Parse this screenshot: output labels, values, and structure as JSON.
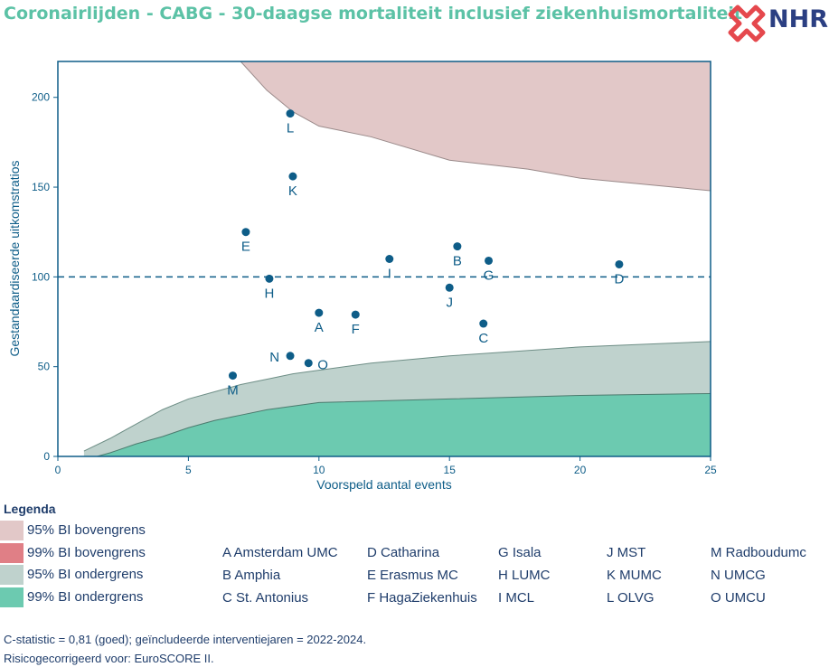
{
  "title": "Coronairlijden - CABG - 30-daagse mortaliteit inclusief ziekenhuismortaliteit",
  "logo": {
    "text": "NHR",
    "icon": "nhr-logo-icon",
    "colors": {
      "mark": "#e5484d",
      "text": "#2b3f82"
    }
  },
  "chart_data": {
    "type": "scatter",
    "title": "",
    "xlabel": "Voorspeld aantal events",
    "ylabel": "Gestandaardiseerde uitkomstratios",
    "xlim": [
      0,
      25
    ],
    "ylim": [
      0,
      220
    ],
    "xticks": [
      0,
      5,
      10,
      15,
      20,
      25
    ],
    "yticks": [
      0,
      50,
      100,
      150,
      200
    ],
    "reference_line": {
      "y": 100,
      "style": "dashed"
    },
    "points": [
      {
        "label": "A",
        "x": 10.0,
        "y": 80
      },
      {
        "label": "B",
        "x": 15.3,
        "y": 117
      },
      {
        "label": "C",
        "x": 16.3,
        "y": 74
      },
      {
        "label": "D",
        "x": 21.5,
        "y": 107
      },
      {
        "label": "E",
        "x": 7.2,
        "y": 125
      },
      {
        "label": "F",
        "x": 11.4,
        "y": 79
      },
      {
        "label": "G",
        "x": 16.5,
        "y": 109
      },
      {
        "label": "H",
        "x": 8.1,
        "y": 99
      },
      {
        "label": "I",
        "x": 12.7,
        "y": 110
      },
      {
        "label": "J",
        "x": 15.0,
        "y": 94
      },
      {
        "label": "K",
        "x": 9.0,
        "y": 156
      },
      {
        "label": "L",
        "x": 8.9,
        "y": 191
      },
      {
        "label": "M",
        "x": 6.7,
        "y": 45
      },
      {
        "label": "N",
        "x": 8.9,
        "y": 56
      },
      {
        "label": "O",
        "x": 9.6,
        "y": 52
      }
    ],
    "bands": {
      "upper95": {
        "x": [
          7,
          8,
          9,
          10,
          12,
          15,
          18,
          20,
          25
        ],
        "y": [
          220,
          204,
          192,
          184,
          178,
          165,
          160,
          155,
          148
        ]
      },
      "lower95": {
        "x": [
          1,
          2,
          3,
          4,
          5,
          6,
          7,
          8,
          9,
          10,
          12,
          15,
          20,
          25
        ],
        "y": [
          3,
          10,
          18,
          26,
          32,
          36,
          40,
          43,
          46,
          48,
          52,
          56,
          61,
          64
        ]
      },
      "lower99": {
        "x": [
          1.5,
          2,
          3,
          4,
          5,
          6,
          7,
          8,
          9,
          10,
          15,
          20,
          25
        ],
        "y": [
          0,
          2,
          7,
          11,
          16,
          20,
          23,
          26,
          28,
          30,
          32,
          34,
          35
        ]
      }
    },
    "colors": {
      "upper95": "#e2c8c8",
      "upper99": "#e07f86",
      "lower95": "#bfd2cd",
      "lower99": "#6ccab0",
      "lower95_edge": "#6e8e86",
      "lower99_edge": "#4b7b6e",
      "upper_edge": "#9a8a8a",
      "points": "#0e5d88",
      "axis": "#0e5d88",
      "text": "#1f3d6b"
    }
  },
  "legend": {
    "title": "Legenda",
    "items": [
      {
        "label": "95% BI bovengrens",
        "color": "#e2c8c8"
      },
      {
        "label": "99% BI bovengrens",
        "color": "#e07f86"
      },
      {
        "label": "95% BI ondergrens",
        "color": "#bfd2cd"
      },
      {
        "label": "99% BI ondergrens",
        "color": "#6ccab0"
      }
    ],
    "hospitals": [
      [
        "A Amsterdam UMC",
        "B Amphia",
        "C St. Antonius"
      ],
      [
        "D Catharina",
        "E Erasmus MC",
        "F HagaZiekenhuis"
      ],
      [
        "G Isala",
        "H LUMC",
        "I MCL"
      ],
      [
        "J MST",
        "K MUMC",
        "L OLVG"
      ],
      [
        "M Radboudumc",
        "N UMCG",
        "O UMCU"
      ]
    ]
  },
  "footnotes": [
    "C-statistic =  0,81 (goed); geïncludeerde interventiejaren = 2022-2024.",
    "Risicogecorrigeerd voor: EuroSCORE II."
  ]
}
